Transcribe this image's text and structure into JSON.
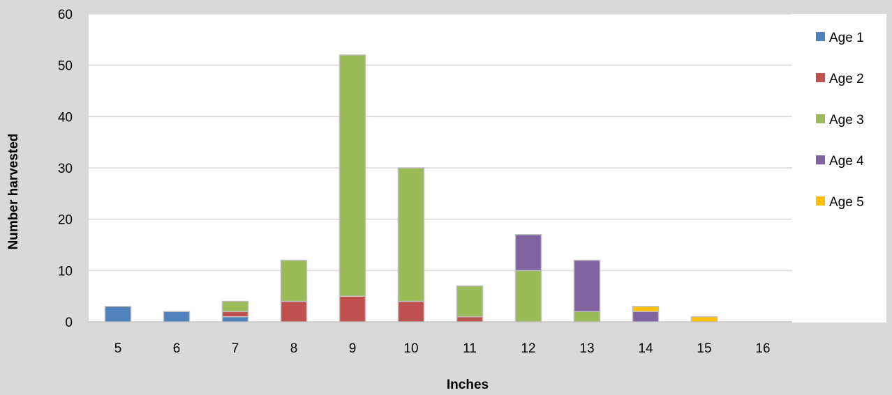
{
  "chart_data": {
    "type": "bar",
    "stacked": true,
    "title": "",
    "xlabel": "Inches",
    "ylabel": "Number harvested",
    "ylim": [
      0,
      60
    ],
    "yticks": [
      0,
      10,
      20,
      30,
      40,
      50,
      60
    ],
    "grid": true,
    "legend_position": "right",
    "categories": [
      "5",
      "6",
      "7",
      "8",
      "9",
      "10",
      "11",
      "12",
      "13",
      "14",
      "15",
      "16"
    ],
    "series": [
      {
        "name": "Age 1",
        "color": "#4f81bd",
        "values": [
          3,
          2,
          1,
          0,
          0,
          0,
          0,
          0,
          0,
          0,
          0,
          0
        ]
      },
      {
        "name": "Age 2",
        "color": "#c0504d",
        "values": [
          0,
          0,
          1,
          4,
          5,
          4,
          1,
          0,
          0,
          0,
          0,
          0
        ]
      },
      {
        "name": "Age 3",
        "color": "#9bbb59",
        "values": [
          0,
          0,
          2,
          8,
          47,
          26,
          6,
          10,
          2,
          0,
          0,
          0
        ]
      },
      {
        "name": "Age 4",
        "color": "#8064a2",
        "values": [
          0,
          0,
          0,
          0,
          0,
          0,
          0,
          7,
          10,
          2,
          0,
          0
        ]
      },
      {
        "name": "Age 5",
        "color": "#ffc000",
        "values": [
          0,
          0,
          0,
          0,
          0,
          0,
          0,
          0,
          0,
          1,
          1,
          0
        ]
      }
    ]
  }
}
